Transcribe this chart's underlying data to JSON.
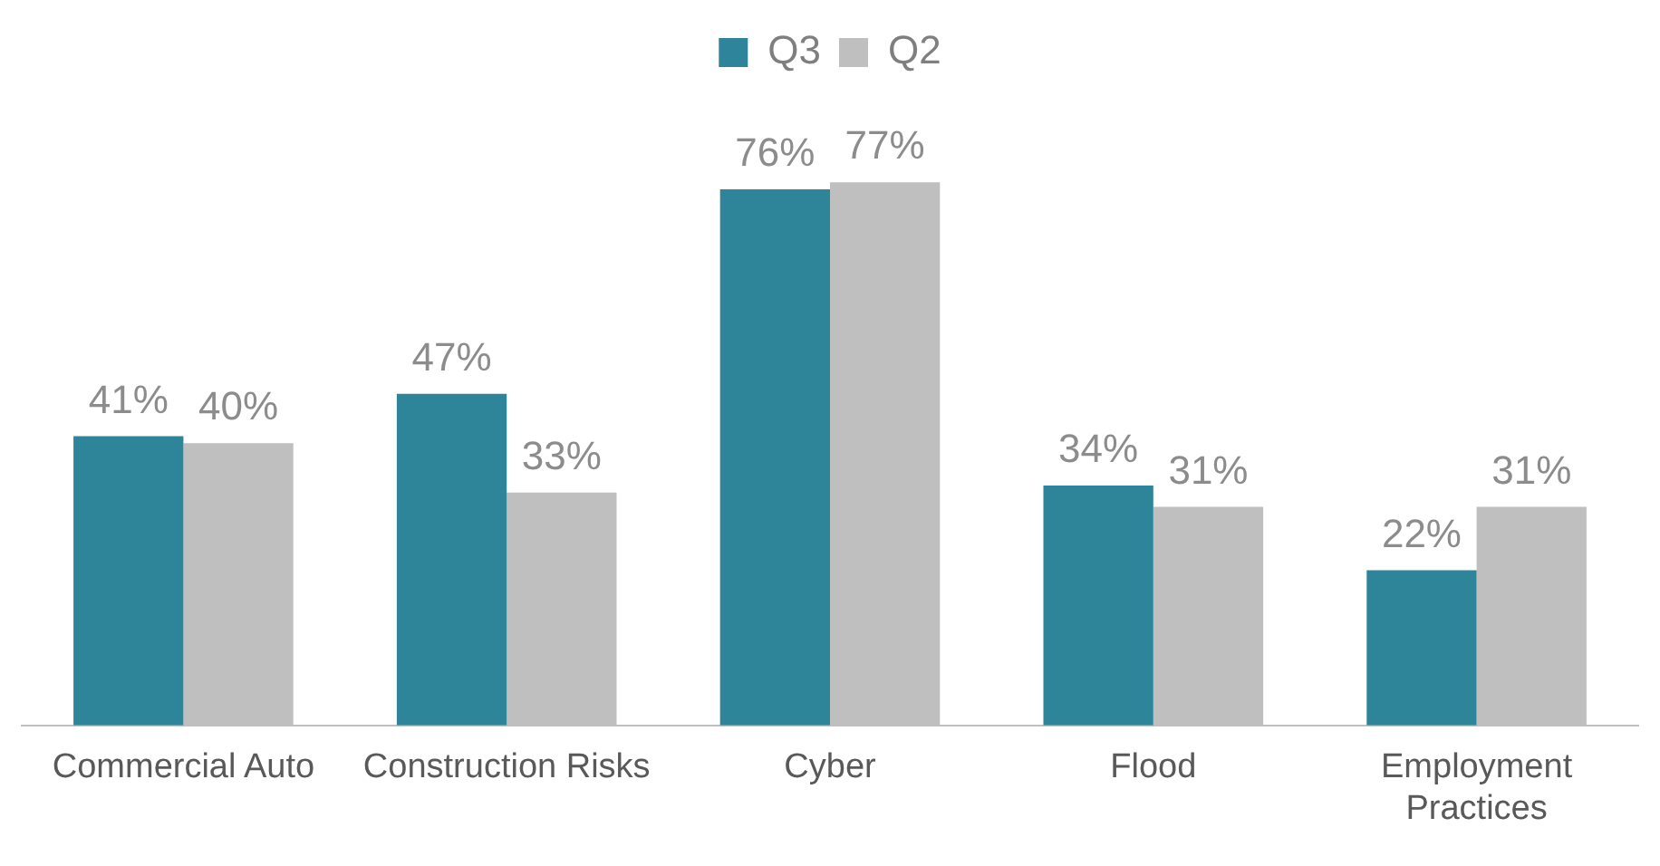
{
  "chart_data": {
    "type": "bar",
    "categories": [
      "Commercial Auto",
      "Construction Risks",
      "Cyber",
      "Flood",
      "Employment Practices"
    ],
    "series": [
      {
        "name": "Q3",
        "color": "#2e8499",
        "values": [
          41,
          47,
          76,
          34,
          22
        ],
        "value_labels": [
          "41%",
          "47%",
          "76%",
          "34%",
          "22%"
        ]
      },
      {
        "name": "Q2",
        "color": "#bfbfbf",
        "values": [
          40,
          33,
          77,
          31,
          31
        ],
        "value_labels": [
          "40%",
          "33%",
          "77%",
          "31%",
          "31%"
        ]
      }
    ],
    "legend": "top",
    "grid": false
  }
}
